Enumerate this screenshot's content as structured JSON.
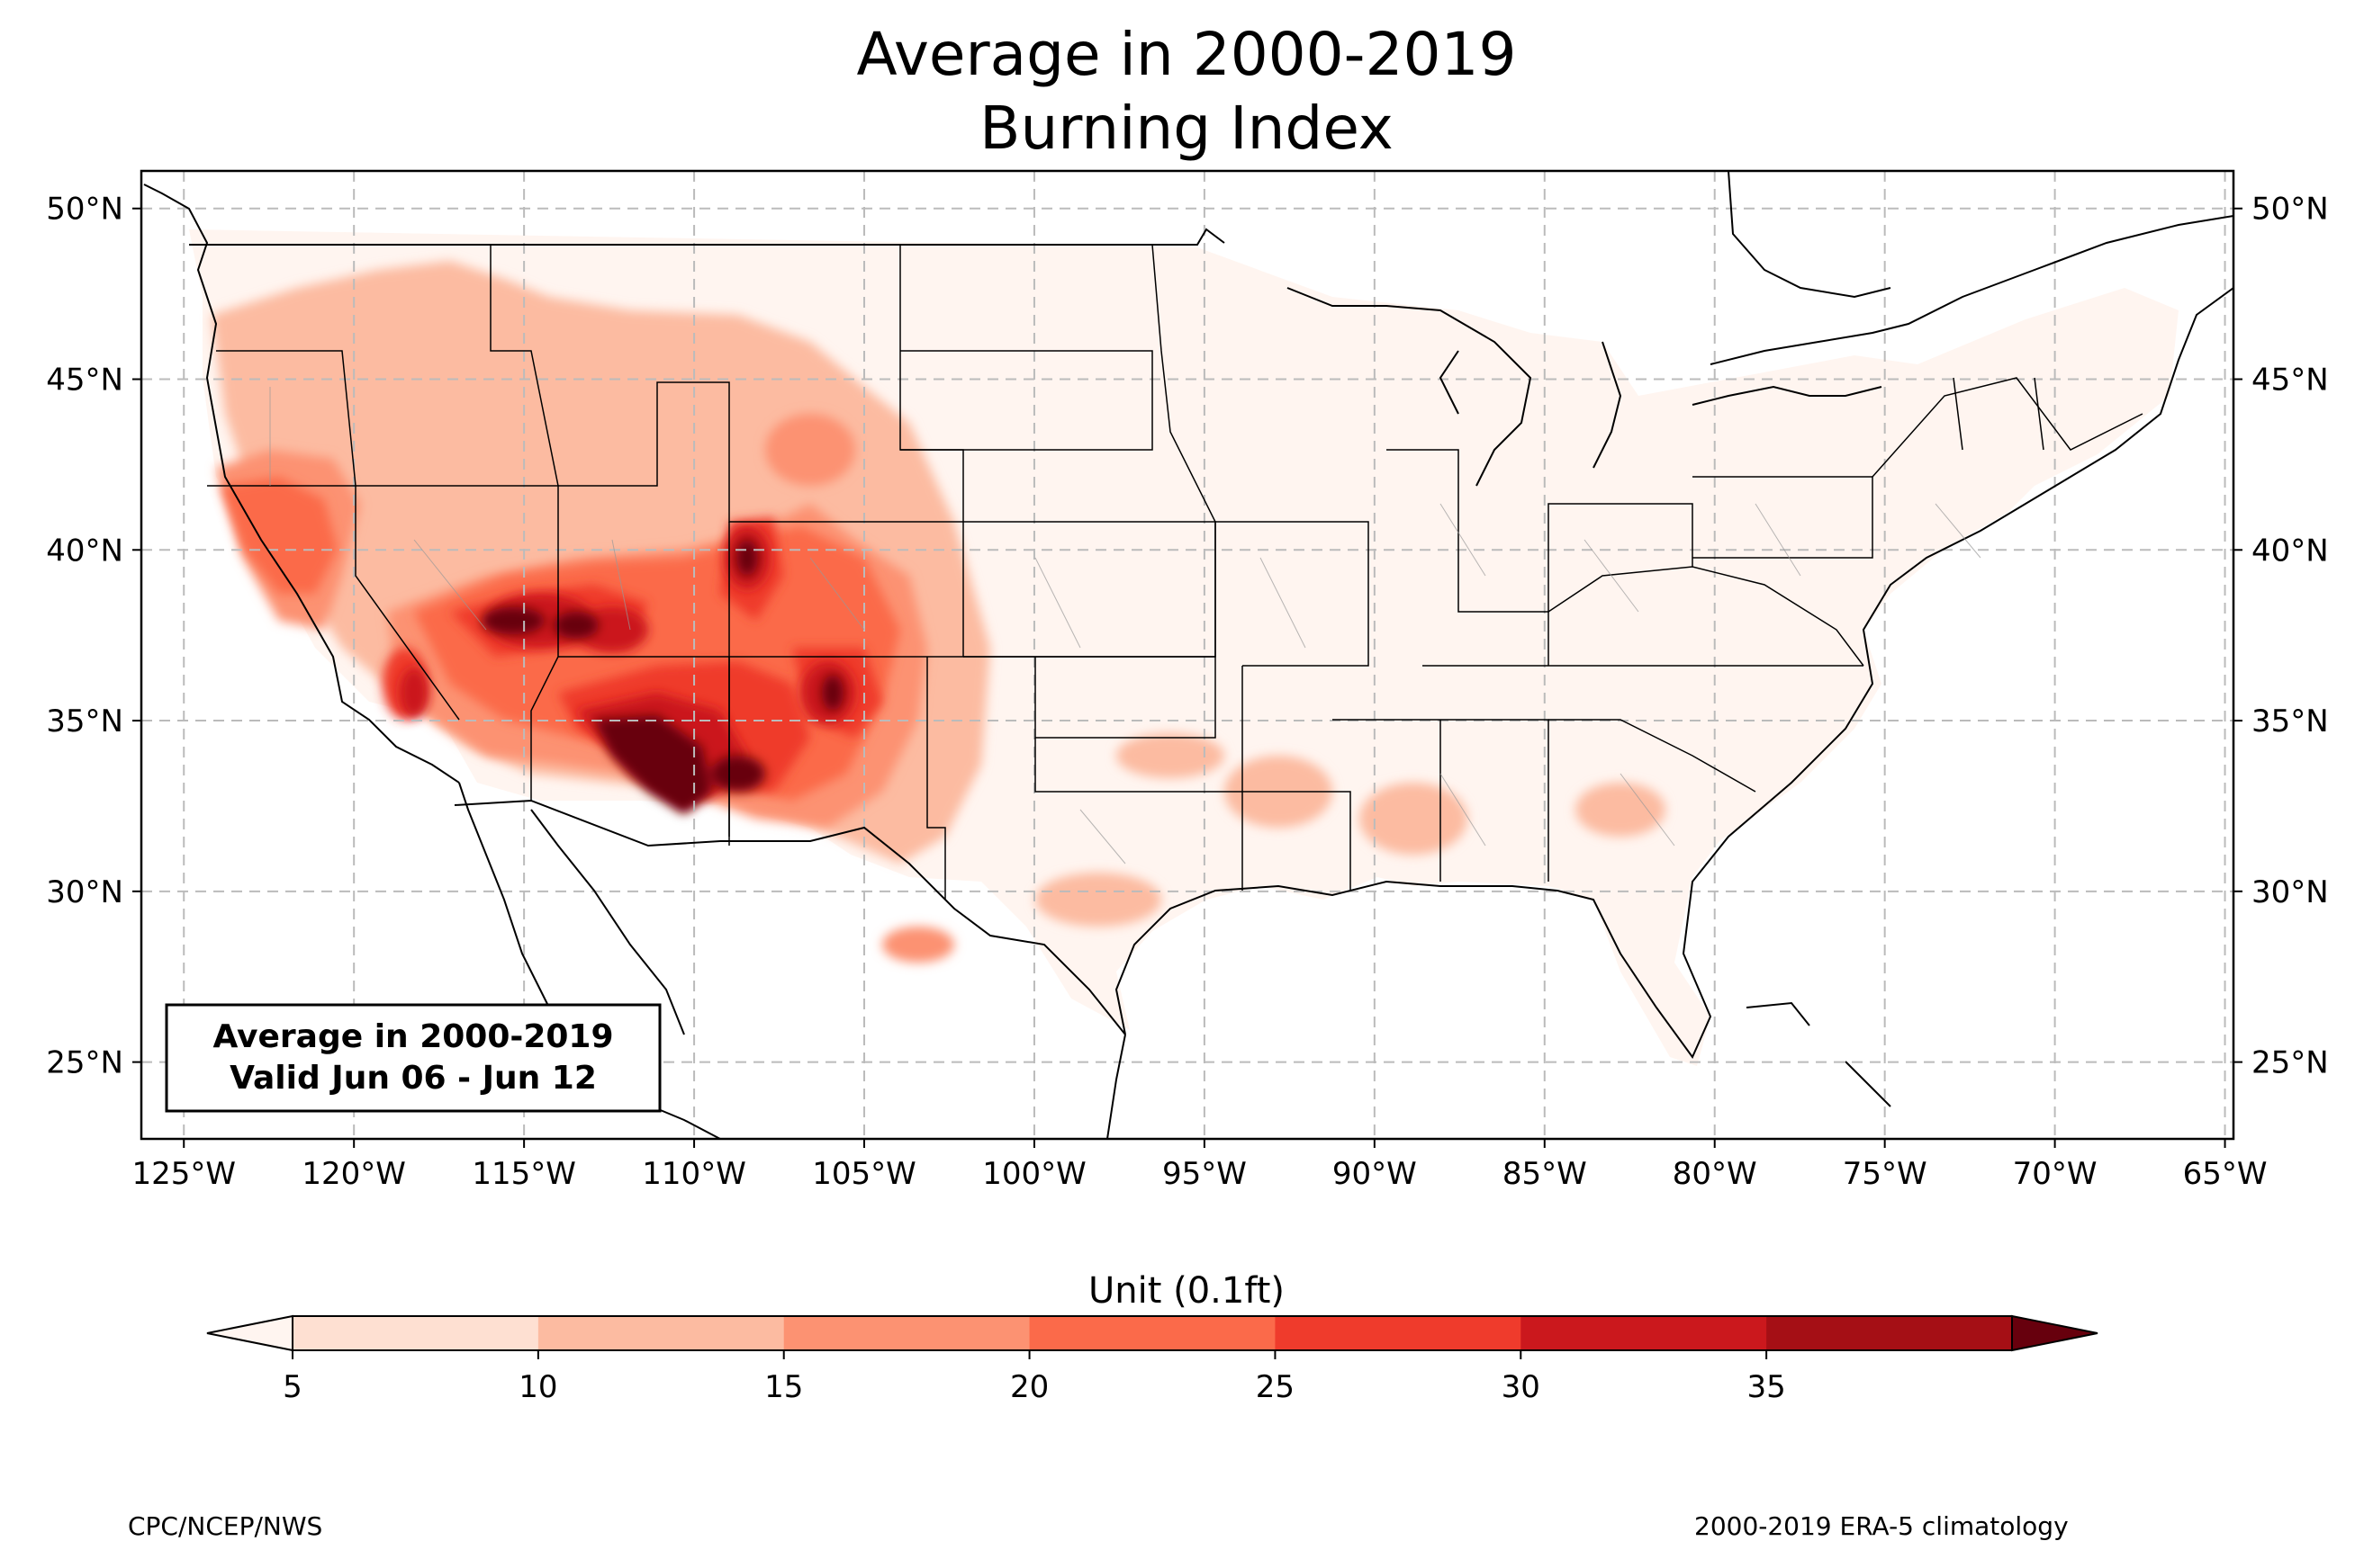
{
  "title": {
    "line1": "Average in 2000-2019",
    "line2": "Burning Index"
  },
  "map": {
    "lon_ticks": [
      "125°W",
      "120°W",
      "115°W",
      "110°W",
      "105°W",
      "100°W",
      "95°W",
      "90°W",
      "85°W",
      "80°W",
      "75°W",
      "70°W",
      "65°W"
    ],
    "lat_ticks": [
      "50°N",
      "45°N",
      "40°N",
      "35°N",
      "30°N",
      "25°N"
    ],
    "lon_range": [
      -126.25,
      -64.75
    ],
    "lat_range": [
      22.75,
      51.1
    ]
  },
  "inset": {
    "line1": "Average in 2000-2019",
    "line2": "Valid Jun 06 - Jun 12"
  },
  "colorbar": {
    "label": "Unit (0.1ft)",
    "ticks": [
      "5",
      "10",
      "15",
      "20",
      "25",
      "30",
      "35"
    ],
    "colors": [
      "#fee0d2",
      "#fcbba1",
      "#fc9272",
      "#fb6a4a",
      "#ef3b2c",
      "#cb181d",
      "#a50f15"
    ],
    "under_color": "#fff5f0",
    "over_color": "#67000d"
  },
  "footer": {
    "left": "CPC/NCEP/NWS",
    "right": "2000-2019 ERA-5 climatology"
  }
}
